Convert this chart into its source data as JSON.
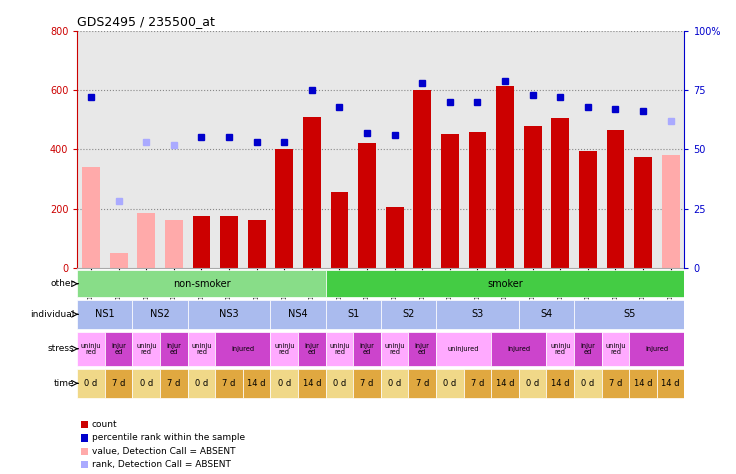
{
  "title": "GDS2495 / 235500_at",
  "samples": [
    "GSM122528",
    "GSM122531",
    "GSM122539",
    "GSM122540",
    "GSM122541",
    "GSM122542",
    "GSM122543",
    "GSM122544",
    "GSM122546",
    "GSM122527",
    "GSM122529",
    "GSM122530",
    "GSM122532",
    "GSM122533",
    "GSM122535",
    "GSM122536",
    "GSM122538",
    "GSM122534",
    "GSM122537",
    "GSM122545",
    "GSM122547",
    "GSM122548"
  ],
  "bar_values": [
    340,
    50,
    185,
    160,
    175,
    175,
    160,
    400,
    510,
    255,
    420,
    205,
    600,
    450,
    460,
    615,
    480,
    505,
    395,
    465,
    375,
    380
  ],
  "bar_absent": [
    true,
    true,
    true,
    true,
    false,
    false,
    false,
    false,
    false,
    false,
    false,
    false,
    false,
    false,
    false,
    false,
    false,
    false,
    false,
    false,
    false,
    true
  ],
  "rank_values": [
    72,
    28,
    53,
    52,
    55,
    55,
    53,
    53,
    75,
    68,
    57,
    56,
    78,
    70,
    70,
    79,
    73,
    72,
    68,
    67,
    66,
    62
  ],
  "rank_absent": [
    false,
    true,
    true,
    true,
    false,
    false,
    false,
    false,
    false,
    false,
    false,
    false,
    false,
    false,
    false,
    false,
    false,
    false,
    false,
    false,
    false,
    true
  ],
  "ylim_left": [
    0,
    800
  ],
  "ylim_right": [
    0,
    100
  ],
  "yticks_left": [
    0,
    200,
    400,
    600,
    800
  ],
  "yticks_right": [
    0,
    25,
    50,
    75,
    100
  ],
  "bar_color_normal": "#cc0000",
  "bar_color_absent": "#ffaaaa",
  "rank_color_normal": "#0000cc",
  "rank_color_absent": "#aaaaff",
  "grid_color": "#888888",
  "bg_color": "#e8e8e8",
  "other_spans": [
    {
      "start": 0,
      "end": 8,
      "text": "non-smoker",
      "color": "#88dd88"
    },
    {
      "start": 9,
      "end": 21,
      "text": "smoker",
      "color": "#44cc44"
    }
  ],
  "individual_entries": [
    {
      "start": 0,
      "end": 1,
      "text": "NS1",
      "color": "#aabbee"
    },
    {
      "start": 2,
      "end": 3,
      "text": "NS2",
      "color": "#aabbee"
    },
    {
      "start": 4,
      "end": 6,
      "text": "NS3",
      "color": "#aabbee"
    },
    {
      "start": 7,
      "end": 8,
      "text": "NS4",
      "color": "#aabbee"
    },
    {
      "start": 9,
      "end": 10,
      "text": "S1",
      "color": "#aabbee"
    },
    {
      "start": 11,
      "end": 12,
      "text": "S2",
      "color": "#aabbee"
    },
    {
      "start": 13,
      "end": 15,
      "text": "S3",
      "color": "#aabbee"
    },
    {
      "start": 16,
      "end": 17,
      "text": "S4",
      "color": "#aabbee"
    },
    {
      "start": 18,
      "end": 21,
      "text": "S5",
      "color": "#aabbee"
    }
  ],
  "stress_entries": [
    {
      "start": 0,
      "end": 0,
      "text": "uninju\nred",
      "color": "#ffaaff"
    },
    {
      "start": 1,
      "end": 1,
      "text": "injur\ned",
      "color": "#cc44cc"
    },
    {
      "start": 2,
      "end": 2,
      "text": "uninju\nred",
      "color": "#ffaaff"
    },
    {
      "start": 3,
      "end": 3,
      "text": "injur\ned",
      "color": "#cc44cc"
    },
    {
      "start": 4,
      "end": 4,
      "text": "uninju\nred",
      "color": "#ffaaff"
    },
    {
      "start": 5,
      "end": 6,
      "text": "injured",
      "color": "#cc44cc"
    },
    {
      "start": 7,
      "end": 7,
      "text": "uninju\nred",
      "color": "#ffaaff"
    },
    {
      "start": 8,
      "end": 8,
      "text": "injur\ned",
      "color": "#cc44cc"
    },
    {
      "start": 9,
      "end": 9,
      "text": "uninju\nred",
      "color": "#ffaaff"
    },
    {
      "start": 10,
      "end": 10,
      "text": "injur\ned",
      "color": "#cc44cc"
    },
    {
      "start": 11,
      "end": 11,
      "text": "uninju\nred",
      "color": "#ffaaff"
    },
    {
      "start": 12,
      "end": 12,
      "text": "injur\ned",
      "color": "#cc44cc"
    },
    {
      "start": 13,
      "end": 14,
      "text": "uninjured",
      "color": "#ffaaff"
    },
    {
      "start": 15,
      "end": 16,
      "text": "injured",
      "color": "#cc44cc"
    },
    {
      "start": 17,
      "end": 17,
      "text": "uninju\nred",
      "color": "#ffaaff"
    },
    {
      "start": 18,
      "end": 18,
      "text": "injur\ned",
      "color": "#cc44cc"
    },
    {
      "start": 19,
      "end": 19,
      "text": "uninju\nred",
      "color": "#ffaaff"
    },
    {
      "start": 20,
      "end": 21,
      "text": "injured",
      "color": "#cc44cc"
    }
  ],
  "time_entries": [
    {
      "start": 0,
      "end": 0,
      "text": "0 d",
      "color": "#f0d888"
    },
    {
      "start": 1,
      "end": 1,
      "text": "7 d",
      "color": "#e0a840"
    },
    {
      "start": 2,
      "end": 2,
      "text": "0 d",
      "color": "#f0d888"
    },
    {
      "start": 3,
      "end": 3,
      "text": "7 d",
      "color": "#e0a840"
    },
    {
      "start": 4,
      "end": 4,
      "text": "0 d",
      "color": "#f0d888"
    },
    {
      "start": 5,
      "end": 5,
      "text": "7 d",
      "color": "#e0a840"
    },
    {
      "start": 6,
      "end": 6,
      "text": "14 d",
      "color": "#e0a840"
    },
    {
      "start": 7,
      "end": 7,
      "text": "0 d",
      "color": "#f0d888"
    },
    {
      "start": 8,
      "end": 8,
      "text": "14 d",
      "color": "#e0a840"
    },
    {
      "start": 9,
      "end": 9,
      "text": "0 d",
      "color": "#f0d888"
    },
    {
      "start": 10,
      "end": 10,
      "text": "7 d",
      "color": "#e0a840"
    },
    {
      "start": 11,
      "end": 11,
      "text": "0 d",
      "color": "#f0d888"
    },
    {
      "start": 12,
      "end": 12,
      "text": "7 d",
      "color": "#e0a840"
    },
    {
      "start": 13,
      "end": 13,
      "text": "0 d",
      "color": "#f0d888"
    },
    {
      "start": 14,
      "end": 14,
      "text": "7 d",
      "color": "#e0a840"
    },
    {
      "start": 15,
      "end": 15,
      "text": "14 d",
      "color": "#e0a840"
    },
    {
      "start": 16,
      "end": 16,
      "text": "0 d",
      "color": "#f0d888"
    },
    {
      "start": 17,
      "end": 17,
      "text": "14 d",
      "color": "#e0a840"
    },
    {
      "start": 18,
      "end": 18,
      "text": "0 d",
      "color": "#f0d888"
    },
    {
      "start": 19,
      "end": 19,
      "text": "7 d",
      "color": "#e0a840"
    },
    {
      "start": 20,
      "end": 20,
      "text": "14 d",
      "color": "#e0a840"
    },
    {
      "start": 21,
      "end": 21,
      "text": "14 d",
      "color": "#e0a840"
    }
  ],
  "legend_items": [
    {
      "color": "#cc0000",
      "label": "count"
    },
    {
      "color": "#0000cc",
      "label": "percentile rank within the sample"
    },
    {
      "color": "#ffaaaa",
      "label": "value, Detection Call = ABSENT"
    },
    {
      "color": "#aaaaff",
      "label": "rank, Detection Call = ABSENT"
    }
  ]
}
